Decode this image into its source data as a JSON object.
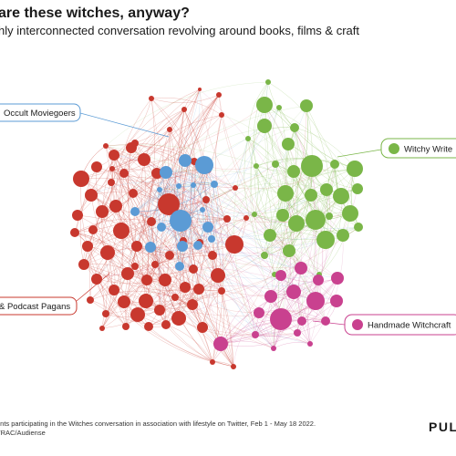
{
  "header": {
    "title": "are these witches, anyway?",
    "subtitle": "hly interconnected conversation revolving around books, films & craft"
  },
  "communities": [
    {
      "id": "occult",
      "label": "Occult Moviegoers",
      "color": "#5b9bd5"
    },
    {
      "id": "writers",
      "label": "Witchy Write",
      "color": "#7ab648"
    },
    {
      "id": "pagans",
      "label": "& Podcast Pagans",
      "color": "#c8382e"
    },
    {
      "id": "craft",
      "label": "Handmade Witchcraft",
      "color": "#c9418f"
    }
  ],
  "footer": {
    "line1": "ents participating in the Witches conversation in association with lifestyle on Twitter, Feb 1 - May 18 2022.",
    "line2": "TRAC/Audiense",
    "brand": "PUL"
  }
}
